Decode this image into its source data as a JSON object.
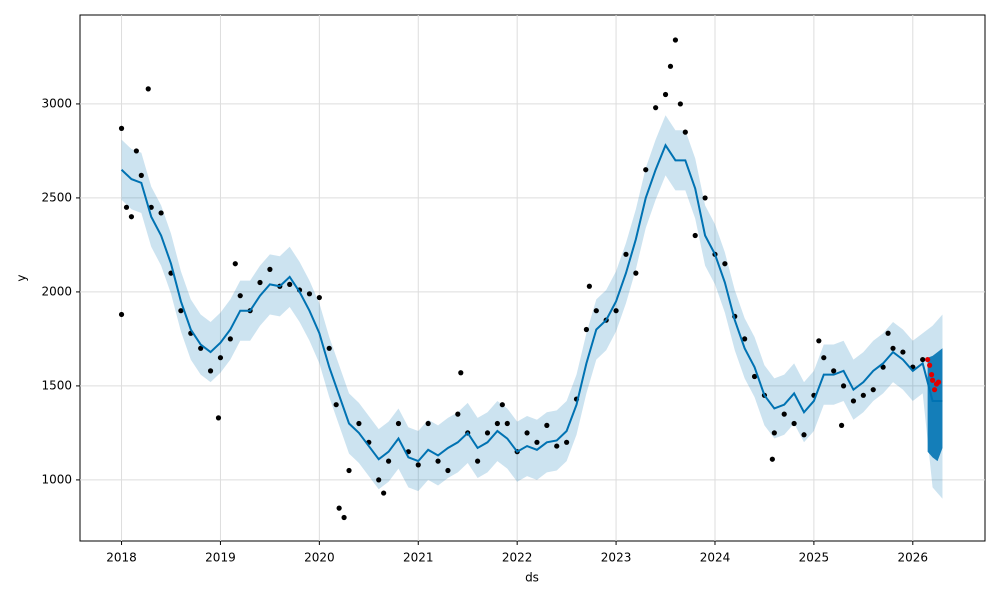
{
  "chart_data": {
    "type": "forecast",
    "xlabel": "ds",
    "ylabel": "y",
    "xlim": [
      2017.58,
      2026.73
    ],
    "ylim": [
      675,
      3473
    ],
    "xticks": [
      2018,
      2019,
      2020,
      2021,
      2022,
      2023,
      2024,
      2025,
      2026
    ],
    "yticks": [
      1000,
      1500,
      2000,
      2500,
      3000
    ],
    "grid": true,
    "line_color": "#0072b2",
    "band_color": "#0072b2",
    "point_color": "#000000",
    "recent_color": "#e00000",
    "fit": {
      "x": [
        2018.0,
        2018.1,
        2018.2,
        2018.3,
        2018.4,
        2018.5,
        2018.6,
        2018.7,
        2018.8,
        2018.9,
        2019.0,
        2019.1,
        2019.2,
        2019.3,
        2019.4,
        2019.5,
        2019.6,
        2019.7,
        2019.8,
        2019.9,
        2020.0,
        2020.1,
        2020.2,
        2020.3,
        2020.4,
        2020.5,
        2020.6,
        2020.7,
        2020.8,
        2020.9,
        2021.0,
        2021.1,
        2021.2,
        2021.3,
        2021.4,
        2021.5,
        2021.6,
        2021.7,
        2021.8,
        2021.9,
        2022.0,
        2022.1,
        2022.2,
        2022.3,
        2022.4,
        2022.5,
        2022.6,
        2022.7,
        2022.8,
        2022.9,
        2023.0,
        2023.1,
        2023.2,
        2023.3,
        2023.4,
        2023.5,
        2023.6,
        2023.7,
        2023.8,
        2023.9,
        2024.0,
        2024.1,
        2024.2,
        2024.3,
        2024.4,
        2024.5,
        2024.6,
        2024.7,
        2024.8,
        2024.9,
        2025.0,
        2025.1,
        2025.2,
        2025.3,
        2025.4,
        2025.5,
        2025.6,
        2025.7,
        2025.8,
        2025.9,
        2026.0,
        2026.1,
        2026.2,
        2026.3
      ],
      "yhat": [
        2650,
        2600,
        2580,
        2400,
        2300,
        2150,
        1950,
        1800,
        1720,
        1680,
        1730,
        1800,
        1900,
        1900,
        1980,
        2040,
        2030,
        2080,
        2000,
        1900,
        1780,
        1600,
        1450,
        1300,
        1250,
        1180,
        1110,
        1150,
        1220,
        1120,
        1100,
        1160,
        1130,
        1170,
        1200,
        1250,
        1170,
        1200,
        1260,
        1220,
        1150,
        1180,
        1160,
        1200,
        1210,
        1260,
        1400,
        1620,
        1800,
        1850,
        1950,
        2100,
        2280,
        2500,
        2650,
        2780,
        2700,
        2700,
        2550,
        2300,
        2200,
        2050,
        1850,
        1700,
        1600,
        1450,
        1380,
        1400,
        1460,
        1360,
        1420,
        1560,
        1560,
        1580,
        1480,
        1520,
        1580,
        1620,
        1680,
        1640,
        1580,
        1620,
        1420,
        1420
      ],
      "upper": [
        2810,
        2760,
        2740,
        2560,
        2460,
        2310,
        2110,
        1960,
        1880,
        1840,
        1890,
        1960,
        2060,
        2060,
        2140,
        2200,
        2190,
        2240,
        2160,
        2060,
        1940,
        1760,
        1610,
        1460,
        1410,
        1340,
        1270,
        1310,
        1380,
        1280,
        1260,
        1320,
        1290,
        1330,
        1360,
        1410,
        1330,
        1360,
        1420,
        1380,
        1310,
        1340,
        1320,
        1360,
        1370,
        1420,
        1560,
        1780,
        1960,
        2010,
        2110,
        2260,
        2440,
        2660,
        2810,
        2940,
        2860,
        2860,
        2710,
        2460,
        2360,
        2210,
        2010,
        1860,
        1760,
        1610,
        1540,
        1560,
        1620,
        1520,
        1580,
        1720,
        1720,
        1740,
        1640,
        1680,
        1740,
        1780,
        1840,
        1800,
        1740,
        1780,
        1820,
        1880
      ],
      "lower": [
        2490,
        2440,
        2420,
        2240,
        2140,
        1990,
        1790,
        1640,
        1560,
        1520,
        1570,
        1640,
        1740,
        1740,
        1820,
        1880,
        1870,
        1920,
        1840,
        1740,
        1620,
        1440,
        1290,
        1140,
        1090,
        1020,
        950,
        990,
        1060,
        960,
        940,
        1000,
        970,
        1010,
        1040,
        1090,
        1010,
        1040,
        1100,
        1060,
        990,
        1020,
        1000,
        1040,
        1050,
        1100,
        1240,
        1460,
        1640,
        1690,
        1790,
        1940,
        2120,
        2340,
        2490,
        2620,
        2540,
        2540,
        2390,
        2140,
        2040,
        1890,
        1690,
        1540,
        1440,
        1290,
        1220,
        1240,
        1300,
        1200,
        1260,
        1400,
        1400,
        1420,
        1320,
        1360,
        1420,
        1460,
        1520,
        1480,
        1420,
        1460,
        960,
        900
      ]
    },
    "forecast": {
      "x": [
        2026.15,
        2026.2,
        2026.25,
        2026.3
      ],
      "upper": [
        1650,
        1660,
        1680,
        1700
      ],
      "lower": [
        1150,
        1120,
        1100,
        1170
      ]
    },
    "observed": {
      "x": [
        2018.0,
        2018.0,
        2018.05,
        2018.1,
        2018.15,
        2018.2,
        2018.27,
        2018.3,
        2018.4,
        2018.5,
        2018.6,
        2018.7,
        2018.8,
        2018.9,
        2018.98,
        2019.0,
        2019.1,
        2019.15,
        2019.2,
        2019.3,
        2019.4,
        2019.5,
        2019.6,
        2019.7,
        2019.8,
        2019.9,
        2020.0,
        2020.1,
        2020.17,
        2020.2,
        2020.25,
        2020.3,
        2020.4,
        2020.5,
        2020.6,
        2020.65,
        2020.7,
        2020.8,
        2020.9,
        2021.0,
        2021.1,
        2021.2,
        2021.3,
        2021.4,
        2021.43,
        2021.5,
        2021.6,
        2021.7,
        2021.8,
        2021.85,
        2021.9,
        2022.0,
        2022.1,
        2022.2,
        2022.3,
        2022.4,
        2022.5,
        2022.6,
        2022.7,
        2022.73,
        2022.8,
        2022.9,
        2023.0,
        2023.1,
        2023.2,
        2023.3,
        2023.4,
        2023.5,
        2023.55,
        2023.6,
        2023.65,
        2023.7,
        2023.8,
        2023.9,
        2024.0,
        2024.1,
        2024.2,
        2024.3,
        2024.4,
        2024.5,
        2024.58,
        2024.6,
        2024.7,
        2024.8,
        2024.9,
        2025.0,
        2025.05,
        2025.1,
        2025.2,
        2025.28,
        2025.3,
        2025.4,
        2025.5,
        2025.6,
        2025.7,
        2025.75,
        2025.8,
        2025.9,
        2026.0,
        2026.1
      ],
      "values": [
        2870,
        1880,
        2450,
        2400,
        2750,
        2620,
        3080,
        2450,
        2420,
        2100,
        1900,
        1780,
        1700,
        1580,
        1330,
        1650,
        1750,
        2150,
        1980,
        1900,
        2050,
        2120,
        2030,
        2040,
        2010,
        1990,
        1970,
        1700,
        1400,
        850,
        800,
        1050,
        1300,
        1200,
        1000,
        930,
        1100,
        1300,
        1150,
        1080,
        1300,
        1100,
        1050,
        1350,
        1570,
        1250,
        1100,
        1250,
        1300,
        1400,
        1300,
        1150,
        1250,
        1200,
        1290,
        1180,
        1200,
        1430,
        1800,
        2030,
        1900,
        1850,
        1900,
        2200,
        2100,
        2650,
        2980,
        3050,
        3200,
        3340,
        3000,
        2850,
        2300,
        2500,
        2200,
        2150,
        1870,
        1750,
        1550,
        1450,
        1110,
        1250,
        1350,
        1300,
        1240,
        1450,
        1740,
        1650,
        1580,
        1290,
        1500,
        1420,
        1450,
        1480,
        1600,
        1780,
        1700,
        1680,
        1600,
        1640
      ]
    },
    "recent": {
      "x": [
        2026.15,
        2026.17,
        2026.19,
        2026.2,
        2026.22,
        2026.24,
        2026.26
      ],
      "values": [
        1640,
        1610,
        1560,
        1530,
        1480,
        1510,
        1520
      ]
    }
  }
}
